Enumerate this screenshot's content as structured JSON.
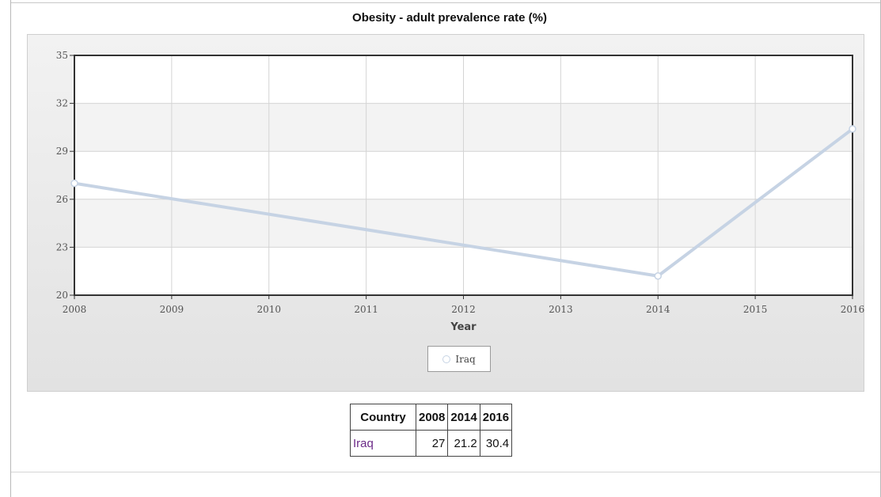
{
  "chart_data": {
    "type": "line",
    "title": "Obesity - adult prevalence rate (%)",
    "xlabel": "Year",
    "ylabel": "",
    "x_ticks": [
      "2008",
      "2009",
      "2010",
      "2011",
      "2012",
      "2013",
      "2014",
      "2015",
      "2016"
    ],
    "y_ticks": [
      "20",
      "23",
      "26",
      "29",
      "32",
      "35"
    ],
    "xlim": [
      2008,
      2016
    ],
    "ylim": [
      20,
      35
    ],
    "grid": true,
    "legend": "bottom-center",
    "series": [
      {
        "name": "Iraq",
        "color": "#c6d3e4",
        "x": [
          2008,
          2014,
          2016
        ],
        "y": [
          27,
          21.2,
          30.4
        ]
      }
    ]
  },
  "table": {
    "headers": [
      "Country",
      "2008",
      "2014",
      "2016"
    ],
    "rows": [
      [
        "Iraq",
        "27",
        "21.2",
        "30.4"
      ]
    ]
  }
}
